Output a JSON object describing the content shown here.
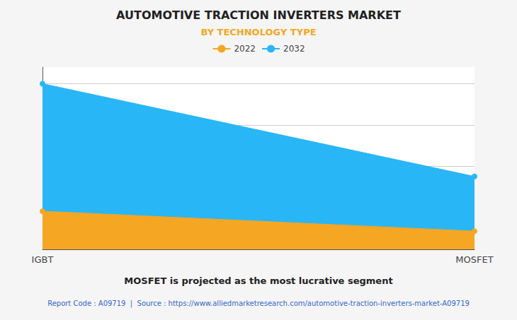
{
  "chart_data": {
    "type": "area",
    "title": "AUTOMOTIVE TRACTION INVERTERS MARKET",
    "subtitle": "BY TECHNOLOGY TYPE",
    "annotations": [
      "MOSFET is projected as the most lucrative segment",
      "Report Code : A09719  |  Source : https://www.alliedmarketresearch.com/automotive-traction-inverters-market-A09719"
    ],
    "categories": [
      "IGBT",
      "MOSFET"
    ],
    "series": [
      {
        "name": "2022",
        "color": "#F5A623",
        "values": [
          0.23,
          0.11
        ]
      },
      {
        "name": "2032",
        "color": "#29B6F6",
        "values": [
          1.0,
          0.44
        ]
      }
    ],
    "ylim": [
      0,
      1.1
    ],
    "yticks": [
      0,
      0.25,
      0.5,
      0.75,
      1.0
    ],
    "grid": true,
    "legend": "top",
    "tick_labels": "x"
  }
}
